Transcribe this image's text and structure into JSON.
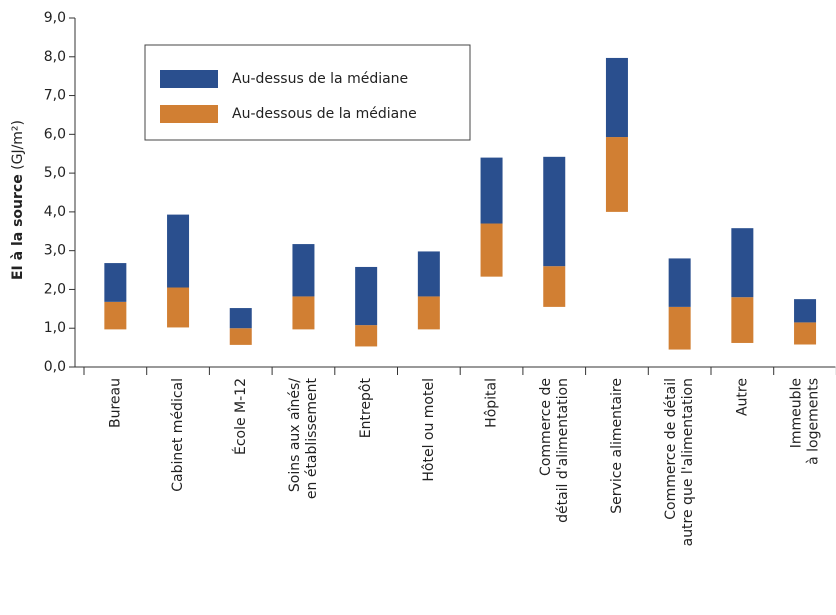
{
  "chart_data": {
    "type": "floating-bar",
    "ylabel": "EI à la source",
    "ylabel_unit": "(GJ/m²)",
    "categories": [
      [
        "Bureau"
      ],
      [
        "Cabinet médical"
      ],
      [
        "École M-12"
      ],
      [
        "Soins aux aînés/",
        "en établissement"
      ],
      [
        "Entrepôt"
      ],
      [
        "Hôtel ou motel"
      ],
      [
        "Hôpital"
      ],
      [
        "Commerce de",
        "détail d'alimentation"
      ],
      [
        "Service alimentaire"
      ],
      [
        "Commerce de détail",
        "autre que l'alimentation"
      ],
      [
        "Autre"
      ],
      [
        "Immeuble",
        "à logements"
      ]
    ],
    "series": [
      {
        "name": "Au-dessous de la médiane",
        "color": "#d17f33",
        "values": [
          [
            0.97,
            1.68
          ],
          [
            1.02,
            2.05
          ],
          [
            0.57,
            1.0
          ],
          [
            0.97,
            1.82
          ],
          [
            0.53,
            1.08
          ],
          [
            0.97,
            1.82
          ],
          [
            2.33,
            3.7
          ],
          [
            1.55,
            2.6
          ],
          [
            4.0,
            5.93
          ],
          [
            0.45,
            1.55
          ],
          [
            0.62,
            1.8
          ],
          [
            0.58,
            1.15
          ]
        ]
      },
      {
        "name": "Au-dessus de la médiane",
        "color": "#2a4f8e",
        "values": [
          [
            1.68,
            2.68
          ],
          [
            2.05,
            3.93
          ],
          [
            1.0,
            1.52
          ],
          [
            1.82,
            3.17
          ],
          [
            1.08,
            2.58
          ],
          [
            1.82,
            2.98
          ],
          [
            3.7,
            5.4
          ],
          [
            2.6,
            5.42
          ],
          [
            5.93,
            7.97
          ],
          [
            1.55,
            2.8
          ],
          [
            1.8,
            3.58
          ],
          [
            1.15,
            1.75
          ]
        ]
      }
    ],
    "legend_order": [
      1,
      0
    ],
    "ylim": [
      0,
      9
    ],
    "yticks": [
      {
        "value": 0,
        "label": "0,0"
      },
      {
        "value": 1,
        "label": "1,0"
      },
      {
        "value": 2,
        "label": "2,0"
      },
      {
        "value": 3,
        "label": "3,0"
      },
      {
        "value": 4,
        "label": "4,0"
      },
      {
        "value": 5,
        "label": "5,0"
      },
      {
        "value": 6,
        "label": "6,0"
      },
      {
        "value": 7,
        "label": "7,0"
      },
      {
        "value": 8,
        "label": "8,0"
      },
      {
        "value": 9,
        "label": "9,0"
      }
    ]
  }
}
